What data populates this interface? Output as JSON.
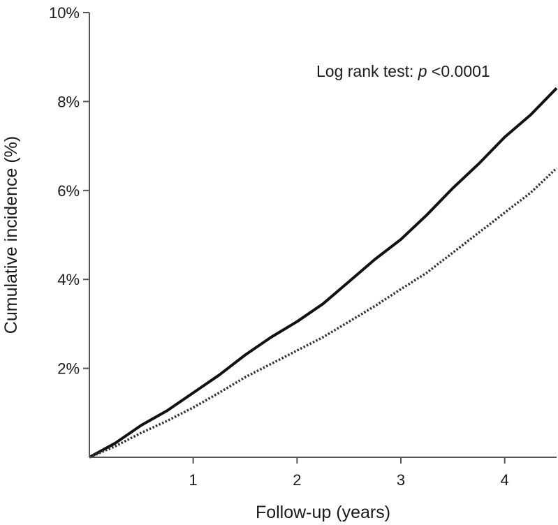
{
  "chart_data": {
    "type": "line",
    "title": "",
    "xlabel": "Follow-up (years)",
    "ylabel": "Cumulative incidence (%)",
    "xlim": [
      0,
      4.5
    ],
    "ylim": [
      0,
      10
    ],
    "x_ticks": [
      1,
      2,
      3,
      4
    ],
    "x_tick_labels": [
      "1",
      "2",
      "3",
      "4"
    ],
    "y_ticks": [
      2,
      4,
      6,
      8,
      10
    ],
    "y_tick_labels": [
      "2%",
      "4%",
      "6%",
      "8%",
      "10%"
    ],
    "grid": false,
    "legend": "none",
    "annotation": {
      "prefix": "Log rank test: ",
      "italic": "p",
      "suffix": " <0.0001"
    },
    "series": [
      {
        "style": "solid",
        "color": "#111111",
        "x": [
          0,
          0.25,
          0.5,
          0.75,
          1.0,
          1.25,
          1.5,
          1.75,
          2.0,
          2.25,
          2.5,
          2.75,
          3.0,
          3.25,
          3.5,
          3.75,
          4.0,
          4.25,
          4.5
        ],
        "y": [
          0,
          0.32,
          0.72,
          1.05,
          1.45,
          1.85,
          2.3,
          2.7,
          3.05,
          3.45,
          3.95,
          4.45,
          4.9,
          5.45,
          6.05,
          6.6,
          7.2,
          7.7,
          8.3
        ]
      },
      {
        "style": "dotted",
        "color": "#333333",
        "x": [
          0,
          0.25,
          0.5,
          0.75,
          1.0,
          1.25,
          1.5,
          1.75,
          2.0,
          2.25,
          2.5,
          2.75,
          3.0,
          3.25,
          3.5,
          3.75,
          4.0,
          4.25,
          4.5
        ],
        "y": [
          0,
          0.25,
          0.55,
          0.82,
          1.12,
          1.45,
          1.8,
          2.1,
          2.4,
          2.7,
          3.05,
          3.4,
          3.78,
          4.15,
          4.6,
          5.05,
          5.5,
          5.95,
          6.5
        ]
      }
    ]
  }
}
